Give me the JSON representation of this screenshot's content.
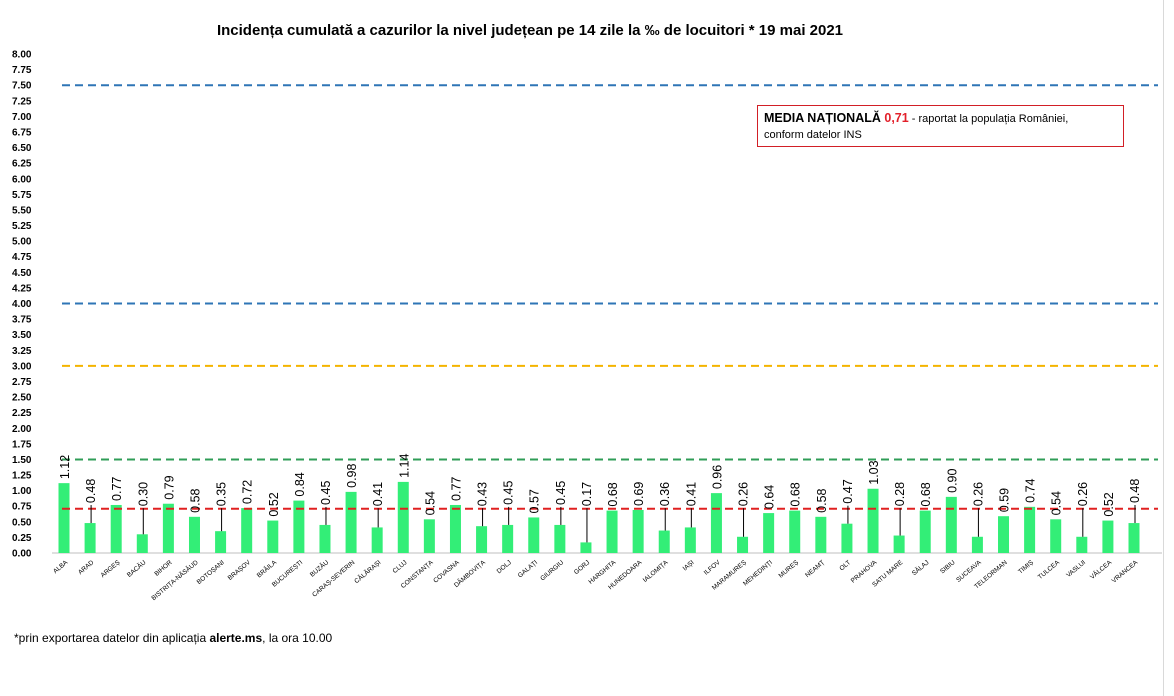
{
  "chart_data": {
    "type": "bar",
    "title": "Incidența cumulată a cazurilor la nivel județean pe 14 zile la ‰ de locuitori *  19 mai 2021",
    "ylim": [
      0,
      8
    ],
    "yticks": [
      "0.00",
      "0.25",
      "0.50",
      "0.75",
      "1.00",
      "1.25",
      "1.50",
      "1.75",
      "2.00",
      "2.25",
      "2.50",
      "2.75",
      "3.00",
      "3.25",
      "3.50",
      "3.75",
      "4.00",
      "4.25",
      "4.50",
      "4.75",
      "5.00",
      "5.25",
      "5.50",
      "5.75",
      "6.00",
      "6.25",
      "6.50",
      "6.75",
      "7.00",
      "7.25",
      "7.50",
      "7.75",
      "8.00"
    ],
    "categories": [
      "ALBA",
      "ARAD",
      "ARGEȘ",
      "BACĂU",
      "BIHOR",
      "BISTRIȚA-NĂSĂUD",
      "BOTOȘANI",
      "BRAȘOV",
      "BRĂILA",
      "BUCUREȘTI",
      "BUZĂU",
      "CARAȘ-SEVERIN",
      "CĂLĂRAȘI",
      "CLUJ",
      "CONSTANȚA",
      "COVASNA",
      "DÂMBOVIȚA",
      "DOLJ",
      "GALAȚI",
      "GIURGIU",
      "GORJ",
      "HARGHITA",
      "HUNEDOARA",
      "IALOMIȚA",
      "IAȘI",
      "ILFOV",
      "MARAMUREȘ",
      "MEHEDINȚI",
      "MUREȘ",
      "NEAMȚ",
      "OLT",
      "PRAHOVA",
      "SATU MARE",
      "SĂLAJ",
      "SIBIU",
      "SUCEAVA",
      "TELEORMAN",
      "TIMIȘ",
      "TULCEA",
      "VASLUI",
      "VÂLCEA",
      "VRANCEA"
    ],
    "values": [
      1.12,
      0.48,
      0.77,
      0.3,
      0.79,
      0.58,
      0.35,
      0.72,
      0.52,
      0.84,
      0.45,
      0.98,
      0.41,
      1.14,
      0.54,
      0.77,
      0.43,
      0.45,
      0.57,
      0.45,
      0.17,
      0.68,
      0.69,
      0.36,
      0.41,
      0.96,
      0.26,
      0.64,
      0.68,
      0.58,
      0.47,
      1.03,
      0.28,
      0.68,
      0.9,
      0.26,
      0.59,
      0.74,
      0.54,
      0.26,
      0.52,
      0.48
    ],
    "labels": [
      "1.12",
      "0.48",
      "0.77",
      "0.30",
      "0.79",
      "0.58",
      "0.35",
      "0.72",
      "0.52",
      "0.84",
      "0.45",
      "0.98",
      "0.41",
      "1.14",
      "0.54",
      "0.77",
      "0.43",
      "0.45",
      "0.57",
      "0.45",
      "0.17",
      "0.68",
      "0.69",
      "0.36",
      "0.41",
      "0.96",
      "0.26",
      "0.64",
      "0.68",
      "0.58",
      "0.47",
      "1.03",
      "0.28",
      "0.68",
      "0.90",
      "0.26",
      "0.59",
      "0.74",
      "0.54",
      "0.26",
      "0.52",
      "0.48"
    ],
    "reference_lines": [
      {
        "value": 7.5,
        "color": "#2e75b6"
      },
      {
        "value": 4.0,
        "color": "#2e75b6"
      },
      {
        "value": 3.0,
        "color": "#f4b400"
      },
      {
        "value": 1.5,
        "color": "#2f9d57"
      },
      {
        "value": 0.71,
        "color": "#e02020"
      }
    ],
    "bar_color": "#33ee77",
    "grid": false,
    "legend": "none"
  },
  "note": {
    "lead": "MEDIA NAȚIONALĂ ",
    "value": "0,71",
    "line1_rest": " - raportat la populația României,",
    "line2": "conform datelor INS"
  },
  "footnote": {
    "prefix": "*prin exportarea datelor din aplicația ",
    "bold": "alerte.ms",
    "suffix": ", la ora 10.00"
  }
}
